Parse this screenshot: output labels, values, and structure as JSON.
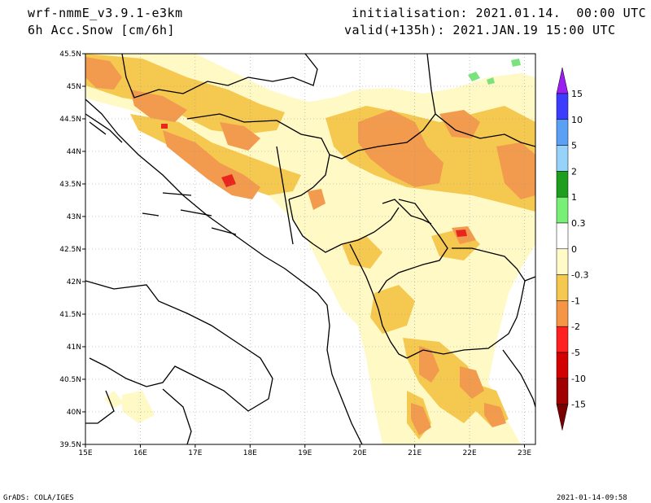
{
  "header": {
    "model": "wrf-nmmE_v3.9.1-e3km",
    "field": "6h Acc.Snow [cm/6h]",
    "init": "initialisation: 2021.01.14.  00:00 UTC",
    "valid": "valid(+135h): 2021.JAN.19 15:00 UTC"
  },
  "footer": {
    "left": "GrADS: COLA/IGES",
    "right": "2021-01-14-09:58"
  },
  "axes": {
    "lon_labels": [
      "15E",
      "16E",
      "17E",
      "18E",
      "19E",
      "20E",
      "21E",
      "22E",
      "23E"
    ],
    "lat_labels": [
      "45.5N",
      "45N",
      "44.5N",
      "44N",
      "43.5N",
      "43N",
      "42.5N",
      "42N",
      "41.5N",
      "41N",
      "40.5N",
      "40N",
      "39.5N"
    ]
  },
  "colorbar": {
    "labels": [
      "15",
      "10",
      "5",
      "2",
      "1",
      "0.3",
      "0",
      "-0.3",
      "-1",
      "-2",
      "-5",
      "-10",
      "-15"
    ],
    "colors": [
      "#9a1ef0",
      "#3c3cff",
      "#5aa0f5",
      "#96d2fa",
      "#1e9e1e",
      "#78f078",
      "#ffffff",
      "#fffac8",
      "#f5c850",
      "#f59646",
      "#ff2020",
      "#d20000",
      "#a00000",
      "#7a0000"
    ]
  },
  "colors": {
    "light": "#fff9c6",
    "yellow": "#f5c850",
    "orange": "#f29a4e",
    "red": "#e8261e",
    "green": "#7be37b",
    "border": "#000000",
    "grid": "#9a9a9a"
  }
}
